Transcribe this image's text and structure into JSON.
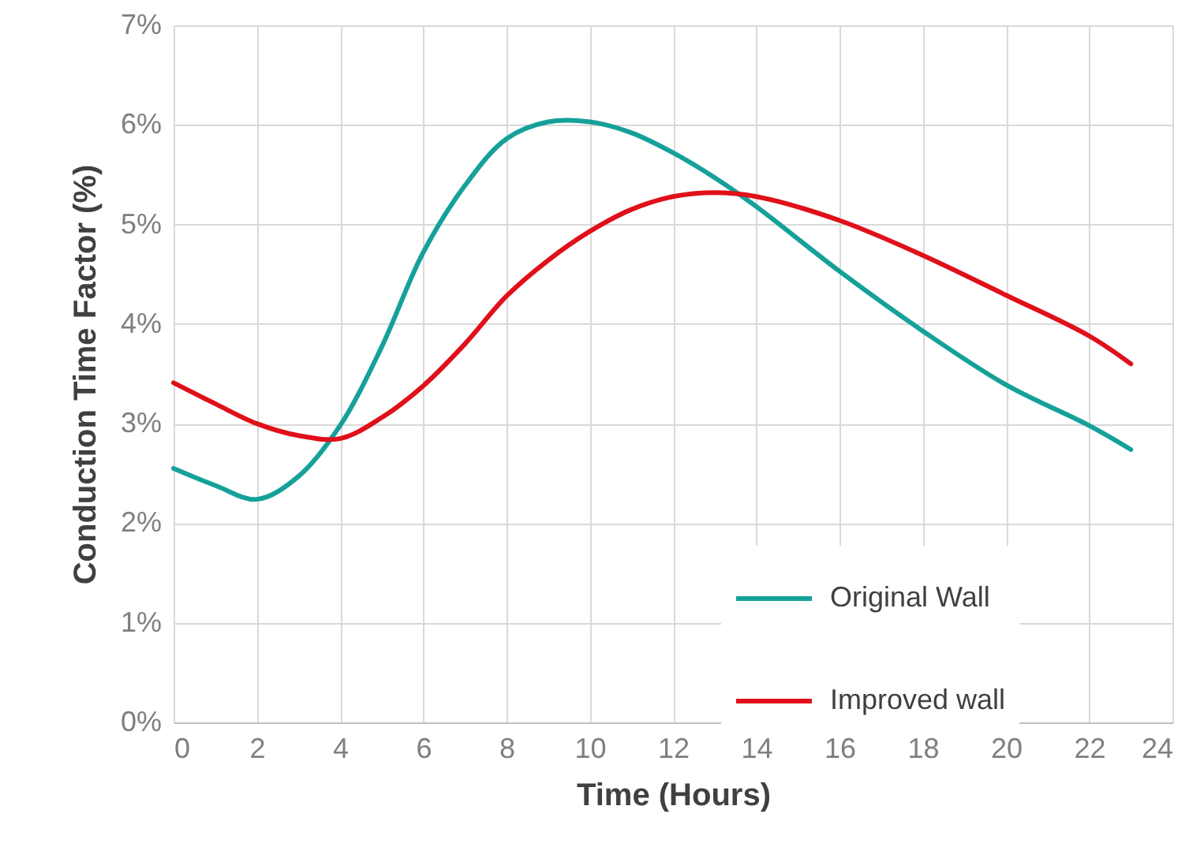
{
  "chart_data": {
    "type": "line",
    "xlabel": "Time (Hours)",
    "ylabel": "Conduction Time Factor (%)",
    "x": [
      0,
      1,
      2,
      3,
      4,
      5,
      6,
      7,
      8,
      9,
      10,
      11,
      12,
      13,
      14,
      16,
      18,
      20,
      22,
      23
    ],
    "series": [
      {
        "name": "Original Wall",
        "color": "#15a19a",
        "values": [
          2.55,
          2.38,
          2.24,
          2.47,
          2.98,
          3.77,
          4.72,
          5.39,
          5.86,
          6.03,
          6.03,
          5.92,
          5.72,
          5.47,
          5.18,
          4.53,
          3.93,
          3.39,
          2.98,
          2.74
        ]
      },
      {
        "name": "Improved wall",
        "color": "#e0101a",
        "values": [
          3.41,
          3.2,
          3.0,
          2.88,
          2.85,
          3.06,
          3.38,
          3.8,
          4.28,
          4.64,
          4.93,
          5.15,
          5.28,
          5.32,
          5.28,
          5.04,
          4.69,
          4.29,
          3.88,
          3.6
        ]
      }
    ],
    "xlim": [
      0,
      24
    ],
    "xticks": [
      0,
      2,
      4,
      6,
      8,
      10,
      12,
      14,
      16,
      18,
      20,
      22,
      24
    ],
    "ylim": [
      0,
      7
    ],
    "yticks": [
      {
        "value": 0,
        "label": "0%"
      },
      {
        "value": 1,
        "label": "1%"
      },
      {
        "value": 2,
        "label": "2%"
      },
      {
        "value": 3,
        "label": "3%"
      },
      {
        "value": 4,
        "label": "4%"
      },
      {
        "value": 5,
        "label": "5%"
      },
      {
        "value": 6,
        "label": "6%"
      },
      {
        "value": 7,
        "label": "7%"
      }
    ],
    "grid": true,
    "legend": "bottom right",
    "marker": "none",
    "line_style": "solid"
  }
}
